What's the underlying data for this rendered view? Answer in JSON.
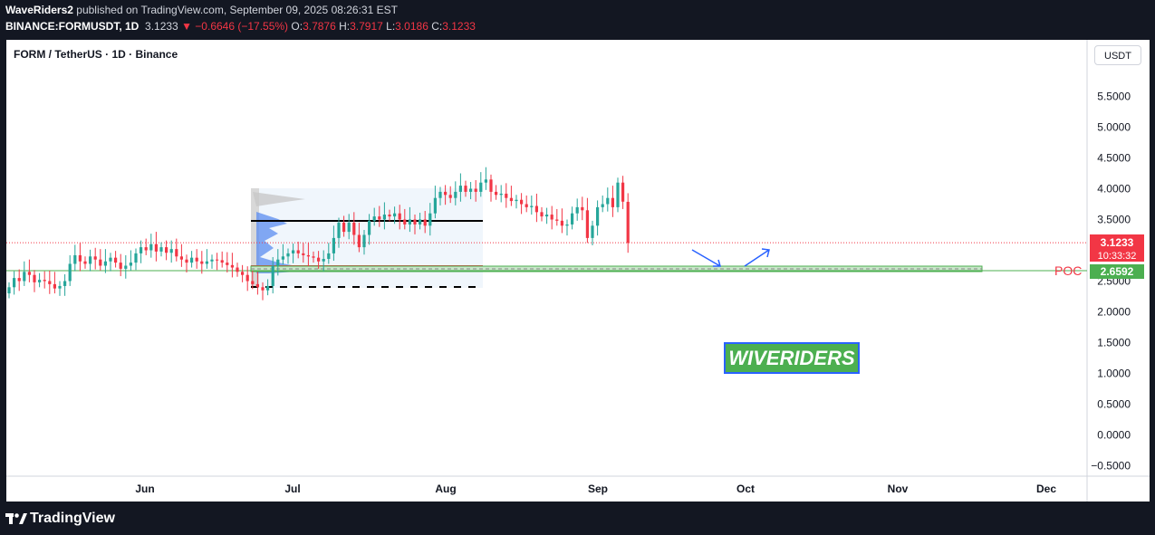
{
  "header": {
    "publisher": "WaveRiders2",
    "published_text": " published on TradingView.com, September 09, 2025 08:26:31 EST",
    "symbol": "BINANCE:FORMUSDT, 1D",
    "last": "3.1233",
    "change": "−0.6646 (−17.55%)",
    "o_label": "O:",
    "o": "3.7876",
    "h_label": "H:",
    "h": "3.7917",
    "l_label": "L:",
    "l": "3.0186",
    "c_label": "C:",
    "c": "3.1233"
  },
  "legend": "FORM / TetherUS · 1D · Binance",
  "unit_button": "USDT",
  "colors": {
    "up": "#26a69a",
    "down": "#f23645",
    "poc": "#4caf50",
    "price_line": "#f23645",
    "wiveriders_bg": "#4caf50",
    "arrow": "#2962ff",
    "vp": "#5b8cf0"
  },
  "chart_data": {
    "type": "candlestick",
    "ylim": [
      -0.6,
      6.1
    ],
    "y_ticks": [
      "5.5000",
      "5.0000",
      "4.5000",
      "4.0000",
      "3.5000",
      "3.0000",
      "2.5000",
      "2.0000",
      "1.5000",
      "1.0000",
      "0.5000",
      "0.0000",
      "−0.5000"
    ],
    "x_ticks": [
      "Jun",
      "Jul",
      "Aug",
      "Sep",
      "Oct",
      "Nov",
      "Dec"
    ],
    "current_price": "3.1233",
    "countdown": "10:33:32",
    "poc_label": "POC",
    "poc_value": "2.6592",
    "annotation": "WIVERIDERS",
    "closes": [
      2.4,
      2.55,
      2.5,
      2.65,
      2.6,
      2.48,
      2.52,
      2.5,
      2.45,
      2.38,
      2.42,
      2.5,
      2.78,
      2.92,
      2.82,
      2.78,
      2.9,
      2.85,
      2.75,
      2.82,
      2.88,
      2.8,
      2.7,
      2.75,
      2.8,
      2.95,
      3.05,
      3.0,
      3.1,
      2.98,
      3.05,
      2.96,
      3.02,
      2.9,
      2.85,
      2.8,
      2.88,
      2.82,
      2.78,
      2.82,
      2.85,
      2.84,
      2.8,
      2.76,
      2.72,
      2.65,
      2.6,
      2.5,
      2.45,
      2.4,
      2.35,
      2.42,
      2.75,
      2.85,
      2.9,
      2.95,
      3.0,
      2.95,
      2.92,
      2.9,
      2.88,
      2.82,
      2.86,
      2.95,
      3.2,
      3.45,
      3.3,
      3.45,
      3.25,
      3.05,
      3.25,
      3.48,
      3.55,
      3.5,
      3.58,
      3.55,
      3.6,
      3.5,
      3.42,
      3.5,
      3.42,
      3.5,
      3.4,
      3.6,
      3.85,
      3.95,
      3.9,
      3.85,
      3.95,
      4.05,
      3.95,
      4.0,
      3.95,
      4.1,
      4.15,
      3.95,
      3.9,
      3.92,
      3.85,
      3.8,
      3.82,
      3.75,
      3.7,
      3.72,
      3.62,
      3.55,
      3.58,
      3.5,
      3.48,
      3.4,
      3.42,
      3.6,
      3.7,
      3.65,
      3.2,
      3.4,
      3.7,
      3.75,
      3.85,
      3.7,
      4.1,
      3.79,
      3.12
    ],
    "annotation_dates": [
      "Jun",
      "Jul",
      "Aug",
      "Sep",
      "Oct",
      "Nov",
      "Dec"
    ]
  }
}
